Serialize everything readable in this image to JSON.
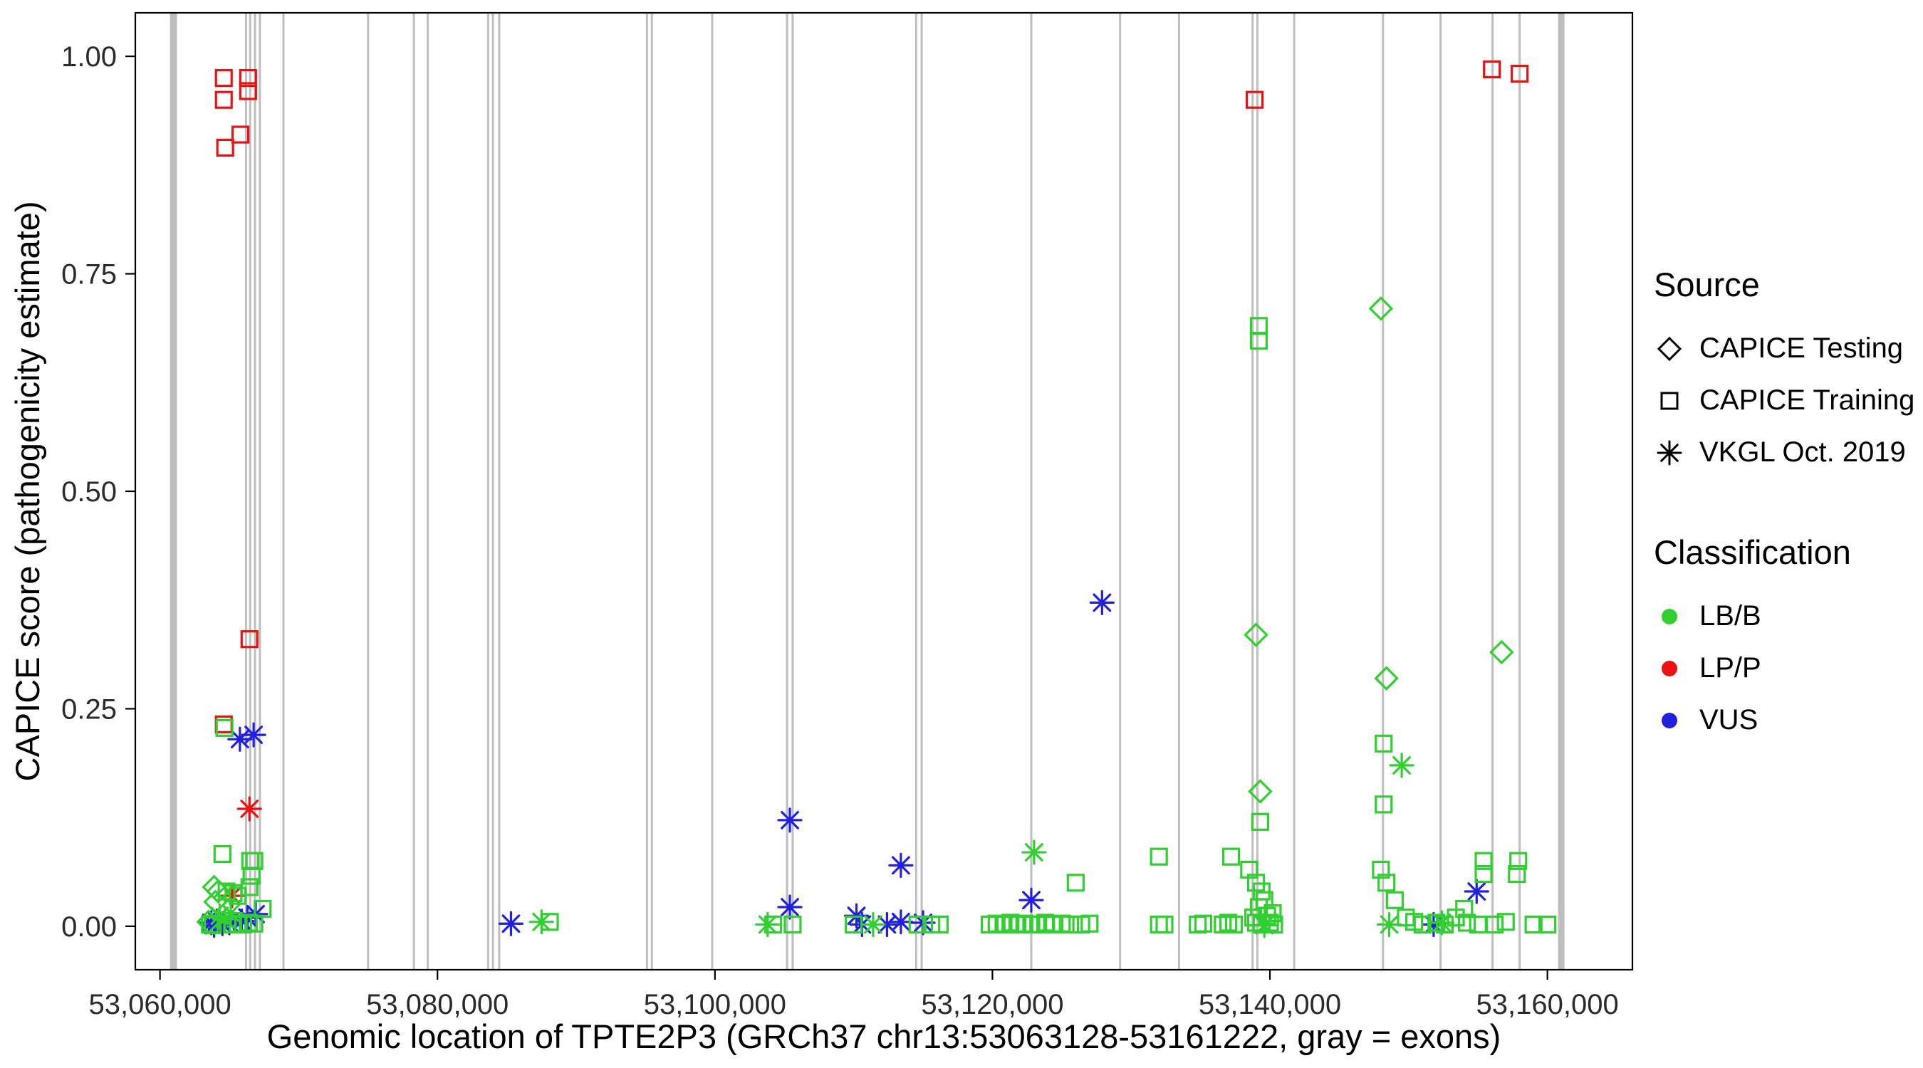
{
  "figure": {
    "background": "#FFFFFF",
    "panel_border_color": "#000000"
  },
  "chart_data": {
    "type": "scatter",
    "title": "",
    "xlabel": "Genomic location of TPTE2P3 (GRCh37 chr13:53063128-53161222, gray = exons)",
    "ylabel": "CAPICE score (pathogenicity estimate)",
    "xlim": [
      53058223,
      53166127
    ],
    "ylim": [
      -0.05,
      1.05
    ],
    "grid": "off",
    "x_ticks": [
      {
        "value": 53060000,
        "label": "53,060,000"
      },
      {
        "value": 53080000,
        "label": "53,080,000"
      },
      {
        "value": 53100000,
        "label": "53,100,000"
      },
      {
        "value": 53120000,
        "label": "53,120,000"
      },
      {
        "value": 53140000,
        "label": "53,140,000"
      },
      {
        "value": 53160000,
        "label": "53,160,000"
      }
    ],
    "y_ticks": [
      {
        "value": 0.0,
        "label": "0.00"
      },
      {
        "value": 0.25,
        "label": "0.25"
      },
      {
        "value": 0.5,
        "label": "0.50"
      },
      {
        "value": 0.75,
        "label": "0.75"
      },
      {
        "value": 1.0,
        "label": "1.00"
      }
    ],
    "gene": {
      "name": "TPTE2P3",
      "build": "GRCh37",
      "region": "chr13:53063128-53161222"
    },
    "exon_color": "#BEBEBE",
    "exons": [
      [
        53060850,
        5
      ],
      [
        53061100,
        5
      ],
      [
        53066200,
        3
      ],
      [
        53066500,
        3
      ],
      [
        53066850,
        3
      ],
      [
        53067200,
        3
      ],
      [
        53068900,
        3
      ],
      [
        53075000,
        3
      ],
      [
        53078300,
        3
      ],
      [
        53079300,
        3
      ],
      [
        53083650,
        3
      ],
      [
        53084000,
        3
      ],
      [
        53084450,
        3
      ],
      [
        53095100,
        3
      ],
      [
        53095450,
        3
      ],
      [
        53099800,
        3
      ],
      [
        53105200,
        3
      ],
      [
        53105600,
        3
      ],
      [
        53114500,
        3
      ],
      [
        53114900,
        3
      ],
      [
        53122800,
        3
      ],
      [
        53129200,
        3
      ],
      [
        53133450,
        3
      ],
      [
        53138750,
        3
      ],
      [
        53139100,
        3
      ],
      [
        53141750,
        3
      ],
      [
        53148150,
        3
      ],
      [
        53152300,
        3
      ],
      [
        53156050,
        3
      ],
      [
        53158000,
        3
      ],
      [
        53161000,
        9
      ]
    ],
    "colors": {
      "LB/B": "#2FD02F",
      "LP/P": "#EC1010",
      "VUS": "#2020E0"
    },
    "shapes": {
      "testing": "diamond",
      "training": "square",
      "vkgl": "asterisk"
    },
    "points_format": [
      "x",
      "y",
      "source",
      "classification"
    ],
    "points": [
      [
        53064600,
        0.975,
        "training",
        "LP/P"
      ],
      [
        53064600,
        0.95,
        "training",
        "LP/P"
      ],
      [
        53064700,
        0.895,
        "training",
        "LP/P"
      ],
      [
        53065800,
        0.91,
        "training",
        "LP/P"
      ],
      [
        53066350,
        0.975,
        "training",
        "LP/P"
      ],
      [
        53066350,
        0.96,
        "training",
        "LP/P"
      ],
      [
        53066450,
        0.33,
        "training",
        "LP/P"
      ],
      [
        53064600,
        0.232,
        "training",
        "LP/P"
      ],
      [
        53066450,
        0.135,
        "vkgl",
        "LP/P"
      ],
      [
        53065200,
        0.035,
        "vkgl",
        "LP/P"
      ],
      [
        53138900,
        0.95,
        "training",
        "LP/P"
      ],
      [
        53156000,
        0.985,
        "training",
        "LP/P"
      ],
      [
        53158000,
        0.98,
        "training",
        "LP/P"
      ],
      [
        53065760,
        0.215,
        "vkgl",
        "VUS"
      ],
      [
        53066750,
        0.22,
        "vkgl",
        "VUS"
      ],
      [
        53105400,
        0.122,
        "vkgl",
        "VUS"
      ],
      [
        53105400,
        0.022,
        "vkgl",
        "VUS"
      ],
      [
        53113400,
        0.07,
        "vkgl",
        "VUS"
      ],
      [
        53127900,
        0.372,
        "vkgl",
        "VUS"
      ],
      [
        53122800,
        0.03,
        "vkgl",
        "VUS"
      ],
      [
        53154900,
        0.04,
        "vkgl",
        "VUS"
      ],
      [
        53151800,
        0.002,
        "vkgl",
        "VUS"
      ],
      [
        53085300,
        0.003,
        "vkgl",
        "VUS"
      ],
      [
        53110200,
        0.012,
        "vkgl",
        "VUS"
      ],
      [
        53110600,
        0.002,
        "vkgl",
        "VUS"
      ],
      [
        53112400,
        0.002,
        "vkgl",
        "VUS"
      ],
      [
        53113400,
        0.005,
        "vkgl",
        "VUS"
      ],
      [
        53115000,
        0.004,
        "vkgl",
        "VUS"
      ],
      [
        53063700,
        0.004,
        "vkgl",
        "VUS"
      ],
      [
        53063900,
        0.001,
        "vkgl",
        "VUS"
      ],
      [
        53064100,
        0.006,
        "vkgl",
        "VUS"
      ],
      [
        53064500,
        0.003,
        "vkgl",
        "VUS"
      ],
      [
        53065000,
        0.004,
        "vkgl",
        "VUS"
      ],
      [
        53065900,
        0.006,
        "vkgl",
        "VUS"
      ],
      [
        53066300,
        0.01,
        "vkgl",
        "VUS"
      ],
      [
        53066900,
        0.014,
        "vkgl",
        "VUS"
      ],
      [
        53063500,
        0.005,
        "testing",
        "LB/B"
      ],
      [
        53063900,
        0.045,
        "testing",
        "LB/B"
      ],
      [
        53064200,
        0.04,
        "testing",
        "LB/B"
      ],
      [
        53064000,
        0.028,
        "testing",
        "LB/B"
      ],
      [
        53139000,
        0.335,
        "testing",
        "LB/B"
      ],
      [
        53139300,
        0.155,
        "testing",
        "LB/B"
      ],
      [
        53148000,
        0.71,
        "testing",
        "LB/B"
      ],
      [
        53148400,
        0.285,
        "testing",
        "LB/B"
      ],
      [
        53156700,
        0.315,
        "testing",
        "LB/B"
      ],
      [
        53064300,
        0.012,
        "vkgl",
        "LB/B"
      ],
      [
        53064700,
        0.008,
        "vkgl",
        "LB/B"
      ],
      [
        53065100,
        0.015,
        "vkgl",
        "LB/B"
      ],
      [
        53087500,
        0.005,
        "vkgl",
        "LB/B"
      ],
      [
        53103800,
        0.002,
        "vkgl",
        "LB/B"
      ],
      [
        53111400,
        0.002,
        "vkgl",
        "LB/B"
      ],
      [
        53123000,
        0.085,
        "vkgl",
        "LB/B"
      ],
      [
        53139600,
        0.001,
        "vkgl",
        "LB/B"
      ],
      [
        53149500,
        0.185,
        "vkgl",
        "LB/B"
      ],
      [
        53152400,
        0.004,
        "vkgl",
        "LB/B"
      ],
      [
        53148600,
        0.002,
        "vkgl",
        "LB/B"
      ],
      [
        53064650,
        0.228,
        "training",
        "LB/B"
      ],
      [
        53064500,
        0.083,
        "training",
        "LB/B"
      ],
      [
        53064800,
        0.04,
        "training",
        "LB/B"
      ],
      [
        53065300,
        0.038,
        "training",
        "LB/B"
      ],
      [
        53065600,
        0.035,
        "training",
        "LB/B"
      ],
      [
        53066500,
        0.075,
        "training",
        "LB/B"
      ],
      [
        53066800,
        0.075,
        "training",
        "LB/B"
      ],
      [
        53066600,
        0.058,
        "training",
        "LB/B"
      ],
      [
        53066450,
        0.045,
        "training",
        "LB/B"
      ],
      [
        53067400,
        0.02,
        "training",
        "LB/B"
      ],
      [
        53063600,
        0.002,
        "training",
        "LB/B"
      ],
      [
        53063800,
        0.001,
        "training",
        "LB/B"
      ],
      [
        53065200,
        0.002,
        "training",
        "LB/B"
      ],
      [
        53065600,
        0.003,
        "training",
        "LB/B"
      ],
      [
        53066000,
        0.002,
        "training",
        "LB/B"
      ],
      [
        53066400,
        0.004,
        "training",
        "LB/B"
      ],
      [
        53066800,
        0.003,
        "training",
        "LB/B"
      ],
      [
        53088100,
        0.005,
        "training",
        "LB/B"
      ],
      [
        53104200,
        0.002,
        "training",
        "LB/B"
      ],
      [
        53105600,
        0.002,
        "training",
        "LB/B"
      ],
      [
        53110000,
        0.002,
        "training",
        "LB/B"
      ],
      [
        53114600,
        0.002,
        "training",
        "LB/B"
      ],
      [
        53115600,
        0.002,
        "training",
        "LB/B"
      ],
      [
        53116200,
        0.002,
        "training",
        "LB/B"
      ],
      [
        53119800,
        0.002,
        "training",
        "LB/B"
      ],
      [
        53120300,
        0.003,
        "training",
        "LB/B"
      ],
      [
        53120800,
        0.002,
        "training",
        "LB/B"
      ],
      [
        53121300,
        0.004,
        "training",
        "LB/B"
      ],
      [
        53121800,
        0.002,
        "training",
        "LB/B"
      ],
      [
        53122300,
        0.003,
        "training",
        "LB/B"
      ],
      [
        53122800,
        0.002,
        "training",
        "LB/B"
      ],
      [
        53123300,
        0.002,
        "training",
        "LB/B"
      ],
      [
        53123800,
        0.004,
        "training",
        "LB/B"
      ],
      [
        53124300,
        0.002,
        "training",
        "LB/B"
      ],
      [
        53125000,
        0.003,
        "training",
        "LB/B"
      ],
      [
        53125600,
        0.002,
        "training",
        "LB/B"
      ],
      [
        53126400,
        0.002,
        "training",
        "LB/B"
      ],
      [
        53127000,
        0.003,
        "training",
        "LB/B"
      ],
      [
        53126000,
        0.05,
        "training",
        "LB/B"
      ],
      [
        53132000,
        0.08,
        "training",
        "LB/B"
      ],
      [
        53132000,
        0.002,
        "training",
        "LB/B"
      ],
      [
        53132400,
        0.002,
        "training",
        "LB/B"
      ],
      [
        53134800,
        0.002,
        "training",
        "LB/B"
      ],
      [
        53135200,
        0.003,
        "training",
        "LB/B"
      ],
      [
        53139200,
        0.69,
        "training",
        "LB/B"
      ],
      [
        53139200,
        0.673,
        "training",
        "LB/B"
      ],
      [
        53139300,
        0.12,
        "training",
        "LB/B"
      ],
      [
        53137200,
        0.08,
        "training",
        "LB/B"
      ],
      [
        53138500,
        0.065,
        "training",
        "LB/B"
      ],
      [
        53139000,
        0.05,
        "training",
        "LB/B"
      ],
      [
        53139400,
        0.04,
        "training",
        "LB/B"
      ],
      [
        53139600,
        0.03,
        "training",
        "LB/B"
      ],
      [
        53139200,
        0.022,
        "training",
        "LB/B"
      ],
      [
        53138800,
        0.01,
        "training",
        "LB/B"
      ],
      [
        53139000,
        0.004,
        "training",
        "LB/B"
      ],
      [
        53139400,
        0.002,
        "training",
        "LB/B"
      ],
      [
        53139800,
        0.012,
        "training",
        "LB/B"
      ],
      [
        53140000,
        0.004,
        "training",
        "LB/B"
      ],
      [
        53140300,
        0.002,
        "training",
        "LB/B"
      ],
      [
        53136600,
        0.002,
        "training",
        "LB/B"
      ],
      [
        53137000,
        0.004,
        "training",
        "LB/B"
      ],
      [
        53137400,
        0.002,
        "training",
        "LB/B"
      ],
      [
        53140200,
        0.015,
        "training",
        "LB/B"
      ],
      [
        53148200,
        0.21,
        "training",
        "LB/B"
      ],
      [
        53148200,
        0.14,
        "training",
        "LB/B"
      ],
      [
        53148000,
        0.065,
        "training",
        "LB/B"
      ],
      [
        53148400,
        0.05,
        "training",
        "LB/B"
      ],
      [
        53149000,
        0.03,
        "training",
        "LB/B"
      ],
      [
        53155400,
        0.075,
        "training",
        "LB/B"
      ],
      [
        53155400,
        0.06,
        "training",
        "LB/B"
      ],
      [
        53154000,
        0.02,
        "training",
        "LB/B"
      ],
      [
        53149800,
        0.01,
        "training",
        "LB/B"
      ],
      [
        53150400,
        0.005,
        "training",
        "LB/B"
      ],
      [
        53151000,
        0.002,
        "training",
        "LB/B"
      ],
      [
        53152000,
        0.004,
        "training",
        "LB/B"
      ],
      [
        53152600,
        0.002,
        "training",
        "LB/B"
      ],
      [
        53153400,
        0.01,
        "training",
        "LB/B"
      ],
      [
        53154200,
        0.004,
        "training",
        "LB/B"
      ],
      [
        53155000,
        0.002,
        "training",
        "LB/B"
      ],
      [
        53156200,
        0.002,
        "training",
        "LB/B"
      ],
      [
        53157000,
        0.005,
        "training",
        "LB/B"
      ],
      [
        53159000,
        0.002,
        "training",
        "LB/B"
      ],
      [
        53160000,
        0.002,
        "training",
        "LB/B"
      ],
      [
        53157800,
        0.06,
        "training",
        "LB/B"
      ],
      [
        53157900,
        0.075,
        "training",
        "LB/B"
      ]
    ]
  },
  "legend": {
    "source_title": "Source",
    "source_items": [
      {
        "label": "CAPICE Testing",
        "key": "testing",
        "shape": "diamond"
      },
      {
        "label": "CAPICE Training",
        "key": "training",
        "shape": "square"
      },
      {
        "label": "VKGL Oct. 2019",
        "key": "vkgl",
        "shape": "asterisk"
      }
    ],
    "classification_title": "Classification",
    "classification_items": [
      {
        "label": "LB/B",
        "color": "#2FD02F"
      },
      {
        "label": "LP/P",
        "color": "#EC1010"
      },
      {
        "label": "VUS",
        "color": "#2020E0"
      }
    ]
  }
}
